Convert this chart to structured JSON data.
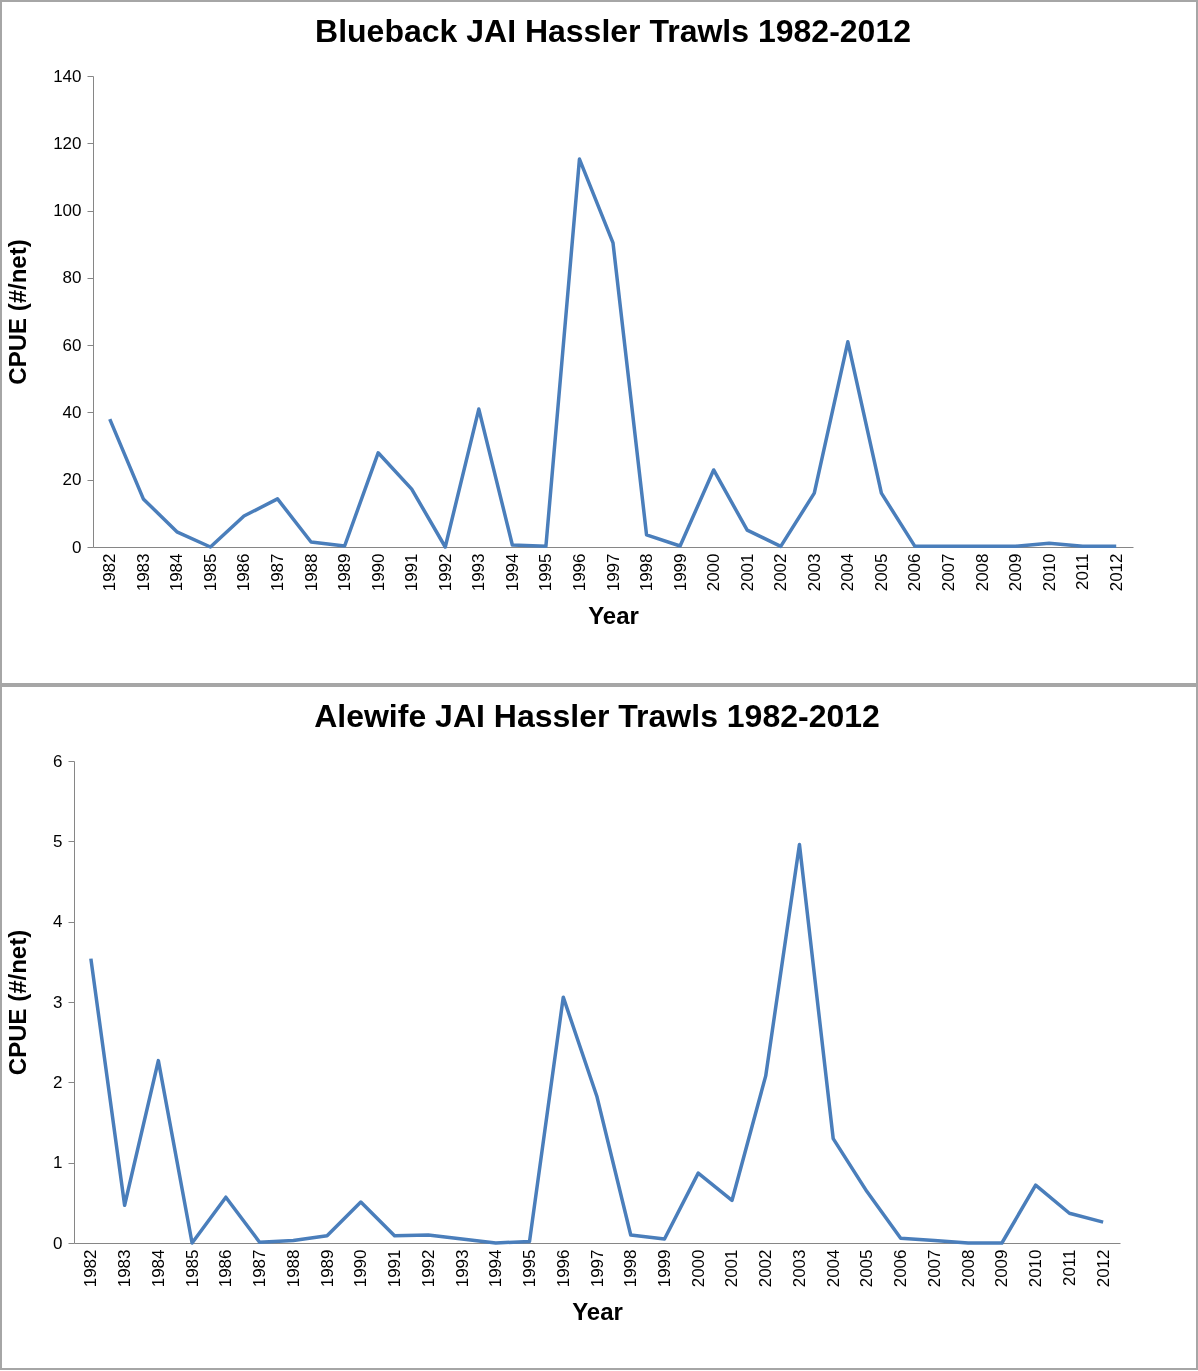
{
  "chart_data": [
    {
      "type": "line",
      "title": "Blueback JAI Hassler Trawls 1982-2012",
      "xlabel": "Year",
      "ylabel": "CPUE (#/net)",
      "categories": [
        "1982",
        "1983",
        "1984",
        "1985",
        "1986",
        "1987",
        "1988",
        "1989",
        "1990",
        "1991",
        "1992",
        "1993",
        "1994",
        "1995",
        "1996",
        "1997",
        "1998",
        "1999",
        "2000",
        "2001",
        "2002",
        "2003",
        "2004",
        "2005",
        "2006",
        "2007",
        "2008",
        "2009",
        "2010",
        "2011",
        "2012"
      ],
      "values": [
        38,
        14.3,
        4.5,
        0,
        9.2,
        14.3,
        1.5,
        0.3,
        28,
        17.2,
        0,
        41,
        0.6,
        0.2,
        115.3,
        90.4,
        3.6,
        0.3,
        22.9,
        5,
        0.2,
        16,
        61,
        16,
        0.2,
        0.2,
        0.2,
        0.2,
        1.1,
        0.2,
        0.2
      ],
      "color": "#4a7ebb",
      "ylim": [
        0,
        140
      ],
      "yticks": [
        0,
        20,
        40,
        60,
        80,
        100,
        120,
        140
      ]
    },
    {
      "type": "line",
      "title": "Alewife JAI Hassler Trawls 1982-2012",
      "xlabel": "Year",
      "ylabel": "CPUE (#/net)",
      "categories": [
        "1982",
        "1983",
        "1984",
        "1985",
        "1986",
        "1987",
        "1988",
        "1989",
        "1990",
        "1991",
        "1992",
        "1993",
        "1994",
        "1995",
        "1996",
        "1997",
        "1998",
        "1999",
        "2000",
        "2001",
        "2002",
        "2003",
        "2004",
        "2005",
        "2006",
        "2007",
        "2008",
        "2009",
        "2010",
        "2011",
        "2012"
      ],
      "values": [
        3.54,
        0.47,
        2.27,
        0,
        0.57,
        0.01,
        0.03,
        0.09,
        0.51,
        0.09,
        0.1,
        0.05,
        0,
        0.02,
        3.06,
        1.82,
        0.1,
        0.05,
        0.87,
        0.53,
        2.08,
        4.96,
        1.3,
        0.64,
        0.06,
        0.03,
        0,
        0,
        0.72,
        0.37,
        0.26
      ],
      "color": "#4a7ebb",
      "ylim": [
        0,
        6
      ],
      "yticks": [
        0,
        1,
        2,
        3,
        4,
        5,
        6
      ]
    }
  ]
}
